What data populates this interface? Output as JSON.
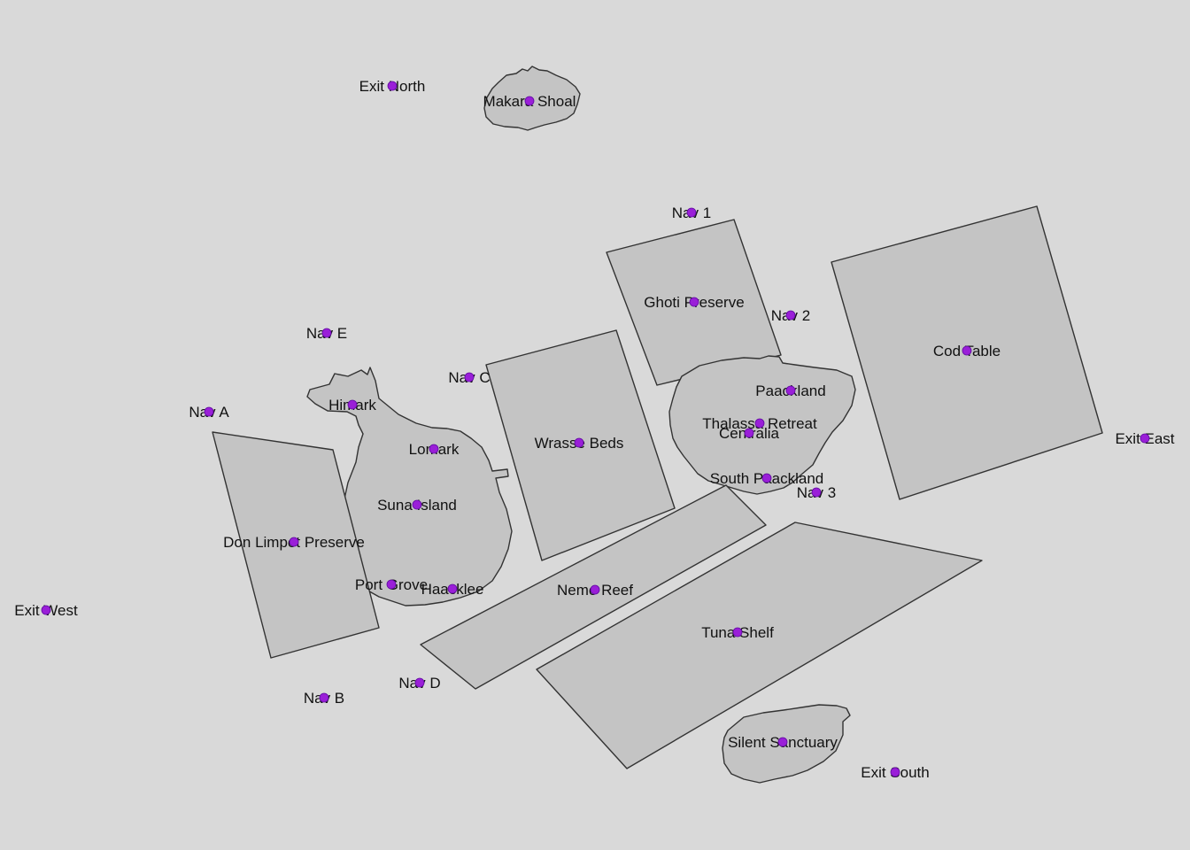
{
  "map": {
    "regions": [
      {
        "id": "makara-shoal",
        "name": "Makara Shoal"
      },
      {
        "id": "ghoti-preserve",
        "name": "Ghoti Preserve"
      },
      {
        "id": "cod-table",
        "name": "Cod Table"
      },
      {
        "id": "wrasse-beds",
        "name": "Wrasse Beds"
      },
      {
        "id": "suna-island",
        "name": "Suna Island"
      },
      {
        "id": "thalassa-retreat",
        "name": "Thalassa Retreat"
      },
      {
        "id": "don-limpet-preserve",
        "name": "Don Limpet Preserve"
      },
      {
        "id": "nemo-reef",
        "name": "Nemo Reef"
      },
      {
        "id": "tuna-shelf",
        "name": "Tuna Shelf"
      },
      {
        "id": "silent-sanctuary",
        "name": "Silent Sanctuary"
      }
    ],
    "places": [
      {
        "id": "exit-north",
        "name": "Exit North"
      },
      {
        "id": "makara-shoal",
        "name": "Makara Shoal"
      },
      {
        "id": "nav-1",
        "name": "Nav 1"
      },
      {
        "id": "ghoti-preserve",
        "name": "Ghoti Preserve"
      },
      {
        "id": "nav-2",
        "name": "Nav 2"
      },
      {
        "id": "cod-table",
        "name": "Cod Table"
      },
      {
        "id": "nav-e",
        "name": "Nav E"
      },
      {
        "id": "nav-c",
        "name": "Nav C"
      },
      {
        "id": "paackland",
        "name": "Paackland"
      },
      {
        "id": "thalassa-retreat",
        "name": "Thalassa Retreat"
      },
      {
        "id": "centralia",
        "name": "Centralia"
      },
      {
        "id": "himark",
        "name": "Himark"
      },
      {
        "id": "nav-a",
        "name": "Nav A"
      },
      {
        "id": "exit-east",
        "name": "Exit East"
      },
      {
        "id": "wrasse-beds",
        "name": "Wrasse Beds"
      },
      {
        "id": "lomark",
        "name": "Lomark"
      },
      {
        "id": "south-paackland",
        "name": "South Paackland"
      },
      {
        "id": "nav-3",
        "name": "Nav 3"
      },
      {
        "id": "suna-island",
        "name": "Suna Island"
      },
      {
        "id": "don-limpet-preserve",
        "name": "Don Limpet Preserve"
      },
      {
        "id": "port-grove",
        "name": "Port Grove"
      },
      {
        "id": "haacklee",
        "name": "Haacklee"
      },
      {
        "id": "nemo-reef",
        "name": "Nemo Reef"
      },
      {
        "id": "exit-west",
        "name": "Exit West"
      },
      {
        "id": "tuna-shelf",
        "name": "Tuna Shelf"
      },
      {
        "id": "nav-d",
        "name": "Nav D"
      },
      {
        "id": "nav-b",
        "name": "Nav B"
      },
      {
        "id": "silent-sanctuary",
        "name": "Silent Sanctuary"
      },
      {
        "id": "exit-south",
        "name": "Exit South"
      }
    ],
    "colors": {
      "background": "#d9d9d9",
      "region_fill": "#c4c4c4",
      "region_outline": "#333333",
      "marker": "#9a1fd8",
      "label": "#111111"
    }
  }
}
